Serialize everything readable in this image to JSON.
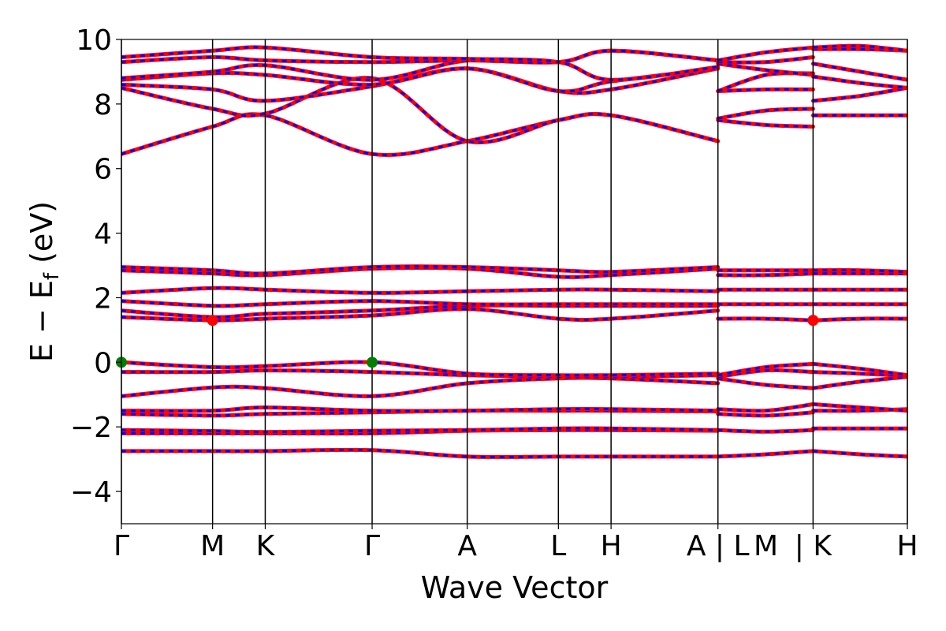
{
  "chart_data": {
    "type": "line",
    "title": "",
    "xlabel": "Wave Vector",
    "ylabel": "E − E",
    "ylabel_sub": "f",
    "ylabel_unit": " (eV)",
    "ylim": [
      -5,
      10
    ],
    "yticks": [
      -4,
      -2,
      0,
      2,
      4,
      6,
      8,
      10
    ],
    "ytick_labels": [
      "−4",
      "−2",
      "0",
      "2",
      "4",
      "6",
      "8",
      "10"
    ],
    "xlim": [
      0,
      1
    ],
    "kpoint_positions": [
      0,
      0.116,
      0.183,
      0.319,
      0.44,
      0.556,
      0.623,
      0.759,
      0.88,
      1.0
    ],
    "kpoint_labels": [
      {
        "x": 0,
        "label": "Γ"
      },
      {
        "x": 0.116,
        "label": "M"
      },
      {
        "x": 0.183,
        "label": "K"
      },
      {
        "x": 0.319,
        "label": "Γ"
      },
      {
        "x": 0.44,
        "label": "A"
      },
      {
        "x": 0.556,
        "label": "L"
      },
      {
        "x": 0.623,
        "label": "H"
      },
      {
        "x": 0.759,
        "label": "A | L"
      },
      {
        "x": 0.82,
        "label": "M"
      },
      {
        "x": 0.88,
        "label": "| K"
      },
      {
        "x": 1.0,
        "label": "H"
      }
    ],
    "grid": false,
    "legend": "none",
    "colors": {
      "solid": "#ff0000",
      "dashed": "#0000ff",
      "vbm": "#008000",
      "cbm": "#ff0000"
    },
    "segments": [
      [
        0,
        0.759
      ],
      [
        0.759,
        0.88
      ],
      [
        0.88,
        1.0
      ]
    ],
    "series": [
      {
        "segment": 0,
        "x": [
          0,
          0.116,
          0.183,
          0.319,
          0.44,
          0.556,
          0.623,
          0.759
        ],
        "y": [
          -2.75,
          -2.75,
          -2.75,
          -2.72,
          -2.92,
          -2.92,
          -2.92,
          -2.92
        ]
      },
      {
        "segment": 0,
        "x": [
          0,
          0.116,
          0.183,
          0.319,
          0.44,
          0.556,
          0.623,
          0.759
        ],
        "y": [
          -2.2,
          -2.2,
          -2.2,
          -2.2,
          -2.12,
          -2.1,
          -2.1,
          -2.12
        ]
      },
      {
        "segment": 0,
        "x": [
          0,
          0.116,
          0.183,
          0.319,
          0.44,
          0.556,
          0.623,
          0.759
        ],
        "y": [
          -2.1,
          -2.13,
          -2.16,
          -2.12,
          -2.1,
          -2.05,
          -2.05,
          -2.1
        ]
      },
      {
        "segment": 0,
        "x": [
          0,
          0.116,
          0.183,
          0.319,
          0.44,
          0.556,
          0.623,
          0.759
        ],
        "y": [
          -1.6,
          -1.65,
          -1.6,
          -1.55,
          -1.5,
          -1.5,
          -1.5,
          -1.52
        ]
      },
      {
        "segment": 0,
        "x": [
          0,
          0.116,
          0.183,
          0.319,
          0.44,
          0.556,
          0.623,
          0.759
        ],
        "y": [
          -1.5,
          -1.5,
          -1.4,
          -1.5,
          -1.5,
          -1.45,
          -1.45,
          -1.5
        ]
      },
      {
        "segment": 0,
        "x": [
          0,
          0.116,
          0.183,
          0.319,
          0.44,
          0.556,
          0.623,
          0.759
        ],
        "y": [
          -1.05,
          -0.78,
          -0.8,
          -1.05,
          -0.65,
          -0.5,
          -0.5,
          -0.65
        ]
      },
      {
        "segment": 0,
        "x": [
          0,
          0.116,
          0.183,
          0.319,
          0.44,
          0.556,
          0.623,
          0.759
        ],
        "y": [
          -0.3,
          -0.3,
          -0.25,
          -0.3,
          -0.4,
          -0.45,
          -0.45,
          -0.4
        ]
      },
      {
        "segment": 0,
        "x": [
          0,
          0.116,
          0.183,
          0.319,
          0.44,
          0.556,
          0.623,
          0.759
        ],
        "y": [
          0.0,
          -0.15,
          -0.12,
          0.0,
          -0.35,
          -0.4,
          -0.4,
          -0.35
        ]
      },
      {
        "segment": 0,
        "x": [
          0,
          0.116,
          0.183,
          0.319,
          0.44,
          0.556,
          0.623,
          0.759
        ],
        "y": [
          1.4,
          1.3,
          1.35,
          1.45,
          1.65,
          1.35,
          1.35,
          1.6
        ]
      },
      {
        "segment": 0,
        "x": [
          0,
          0.116,
          0.183,
          0.319,
          0.44,
          0.556,
          0.623,
          0.759
        ],
        "y": [
          1.6,
          1.4,
          1.5,
          1.6,
          1.75,
          1.75,
          1.75,
          1.75
        ]
      },
      {
        "segment": 0,
        "x": [
          0,
          0.116,
          0.183,
          0.319,
          0.44,
          0.556,
          0.623,
          0.759
        ],
        "y": [
          1.9,
          1.75,
          1.8,
          1.9,
          1.8,
          1.8,
          1.8,
          1.8
        ]
      },
      {
        "segment": 0,
        "x": [
          0,
          0.116,
          0.183,
          0.319,
          0.44,
          0.556,
          0.623,
          0.759
        ],
        "y": [
          2.15,
          2.3,
          2.25,
          2.15,
          2.2,
          2.25,
          2.25,
          2.2
        ]
      },
      {
        "segment": 0,
        "x": [
          0,
          0.116,
          0.183,
          0.319,
          0.44,
          0.556,
          0.623,
          0.759
        ],
        "y": [
          2.85,
          2.75,
          2.7,
          2.9,
          2.9,
          2.65,
          2.7,
          2.9
        ]
      },
      {
        "segment": 0,
        "x": [
          0,
          0.116,
          0.183,
          0.319,
          0.44,
          0.556,
          0.623,
          0.759
        ],
        "y": [
          2.95,
          2.85,
          2.75,
          2.95,
          2.95,
          2.85,
          2.8,
          2.95
        ]
      },
      {
        "segment": 0,
        "x": [
          0,
          0.116,
          0.183,
          0.319,
          0.44,
          0.556,
          0.623,
          0.759
        ],
        "y": [
          6.45,
          7.3,
          7.65,
          6.45,
          6.85,
          7.5,
          7.65,
          6.85
        ]
      },
      {
        "segment": 0,
        "x": [
          0,
          0.116,
          0.183,
          0.319,
          0.44,
          0.556,
          0.623,
          0.759
        ],
        "y": [
          8.5,
          7.85,
          7.7,
          8.8,
          6.85,
          7.5,
          7.65,
          6.85
        ]
      },
      {
        "segment": 0,
        "x": [
          0,
          0.116,
          0.183,
          0.319,
          0.44,
          0.556,
          0.623,
          0.759
        ],
        "y": [
          8.6,
          8.45,
          8.1,
          8.55,
          9.1,
          8.4,
          8.45,
          9.1
        ]
      },
      {
        "segment": 0,
        "x": [
          0,
          0.116,
          0.183,
          0.319,
          0.44,
          0.556,
          0.623,
          0.759
        ],
        "y": [
          8.75,
          8.95,
          8.9,
          8.6,
          9.1,
          8.4,
          8.7,
          9.1
        ]
      },
      {
        "segment": 0,
        "x": [
          0,
          0.116,
          0.183,
          0.319,
          0.44,
          0.556,
          0.623,
          0.759
        ],
        "y": [
          8.8,
          9.0,
          9.2,
          8.75,
          9.35,
          9.3,
          9.65,
          9.35
        ]
      },
      {
        "segment": 0,
        "x": [
          0,
          0.116,
          0.183,
          0.319,
          0.44,
          0.556,
          0.623,
          0.759
        ],
        "y": [
          9.3,
          9.45,
          9.35,
          9.3,
          9.35,
          9.3,
          9.65,
          9.35
        ]
      },
      {
        "segment": 0,
        "x": [
          0,
          0.116,
          0.183,
          0.319,
          0.44,
          0.556,
          0.623,
          0.759
        ],
        "y": [
          9.45,
          9.65,
          9.75,
          9.45,
          9.4,
          9.3,
          8.75,
          9.15
        ]
      },
      {
        "segment": 1,
        "x": [
          0.759,
          0.82,
          0.88
        ],
        "y": [
          -2.92,
          -2.85,
          -2.75
        ]
      },
      {
        "segment": 1,
        "x": [
          0.759,
          0.82,
          0.88
        ],
        "y": [
          -2.1,
          -2.15,
          -2.1
        ]
      },
      {
        "segment": 1,
        "x": [
          0.759,
          0.82,
          0.88
        ],
        "y": [
          -1.6,
          -1.65,
          -1.55
        ]
      },
      {
        "segment": 1,
        "x": [
          0.759,
          0.82,
          0.88
        ],
        "y": [
          -1.45,
          -1.5,
          -1.3
        ]
      },
      {
        "segment": 1,
        "x": [
          0.759,
          0.82,
          0.88
        ],
        "y": [
          -0.5,
          -0.7,
          -0.8
        ]
      },
      {
        "segment": 1,
        "x": [
          0.759,
          0.82,
          0.88
        ],
        "y": [
          -0.45,
          -0.25,
          -0.3
        ]
      },
      {
        "segment": 1,
        "x": [
          0.759,
          0.82,
          0.88
        ],
        "y": [
          -0.4,
          -0.15,
          -0.05
        ]
      },
      {
        "segment": 1,
        "x": [
          0.759,
          0.82,
          0.88
        ],
        "y": [
          1.35,
          1.35,
          1.3
        ]
      },
      {
        "segment": 1,
        "x": [
          0.759,
          0.82,
          0.88
        ],
        "y": [
          1.8,
          1.8,
          1.8
        ]
      },
      {
        "segment": 1,
        "x": [
          0.759,
          0.82,
          0.88
        ],
        "y": [
          2.25,
          2.25,
          2.25
        ]
      },
      {
        "segment": 1,
        "x": [
          0.759,
          0.82,
          0.88
        ],
        "y": [
          2.7,
          2.7,
          2.75
        ]
      },
      {
        "segment": 1,
        "x": [
          0.759,
          0.82,
          0.88
        ],
        "y": [
          2.85,
          2.85,
          2.85
        ]
      },
      {
        "segment": 1,
        "x": [
          0.759,
          0.82,
          0.88
        ],
        "y": [
          7.5,
          7.35,
          7.3
        ]
      },
      {
        "segment": 1,
        "x": [
          0.759,
          0.82,
          0.88
        ],
        "y": [
          7.55,
          7.8,
          7.85
        ]
      },
      {
        "segment": 1,
        "x": [
          0.759,
          0.82,
          0.88
        ],
        "y": [
          8.4,
          8.45,
          8.45
        ]
      },
      {
        "segment": 1,
        "x": [
          0.759,
          0.82,
          0.88
        ],
        "y": [
          8.4,
          8.9,
          8.95
        ]
      },
      {
        "segment": 1,
        "x": [
          0.759,
          0.82,
          0.88
        ],
        "y": [
          9.25,
          9.05,
          8.9
        ]
      },
      {
        "segment": 1,
        "x": [
          0.759,
          0.82,
          0.88
        ],
        "y": [
          9.3,
          9.3,
          9.45
        ]
      },
      {
        "segment": 1,
        "x": [
          0.759,
          0.82,
          0.88
        ],
        "y": [
          9.35,
          9.6,
          9.75
        ]
      },
      {
        "segment": 2,
        "x": [
          0.88,
          0.94,
          1.0
        ],
        "y": [
          -2.75,
          -2.85,
          -2.92
        ]
      },
      {
        "segment": 2,
        "x": [
          0.88,
          0.94,
          1.0
        ],
        "y": [
          -2.05,
          -2.05,
          -2.05
        ]
      },
      {
        "segment": 2,
        "x": [
          0.88,
          0.94,
          1.0
        ],
        "y": [
          -1.5,
          -1.5,
          -1.45
        ]
      },
      {
        "segment": 2,
        "x": [
          0.88,
          0.94,
          1.0
        ],
        "y": [
          -1.3,
          -1.4,
          -1.5
        ]
      },
      {
        "segment": 2,
        "x": [
          0.88,
          0.94,
          1.0
        ],
        "y": [
          -0.8,
          -0.6,
          -0.45
        ]
      },
      {
        "segment": 2,
        "x": [
          0.88,
          0.94,
          1.0
        ],
        "y": [
          -0.3,
          -0.35,
          -0.42
        ]
      },
      {
        "segment": 2,
        "x": [
          0.88,
          0.94,
          1.0
        ],
        "y": [
          -0.05,
          -0.2,
          -0.4
        ]
      },
      {
        "segment": 2,
        "x": [
          0.88,
          0.94,
          1.0
        ],
        "y": [
          1.3,
          1.35,
          1.35
        ]
      },
      {
        "segment": 2,
        "x": [
          0.88,
          0.94,
          1.0
        ],
        "y": [
          1.8,
          1.8,
          1.8
        ]
      },
      {
        "segment": 2,
        "x": [
          0.88,
          0.94,
          1.0
        ],
        "y": [
          2.25,
          2.25,
          2.25
        ]
      },
      {
        "segment": 2,
        "x": [
          0.88,
          0.94,
          1.0
        ],
        "y": [
          2.75,
          2.75,
          2.75
        ]
      },
      {
        "segment": 2,
        "x": [
          0.88,
          0.94,
          1.0
        ],
        "y": [
          2.85,
          2.85,
          2.8
        ]
      },
      {
        "segment": 2,
        "x": [
          0.88,
          0.94,
          1.0
        ],
        "y": [
          7.65,
          7.65,
          7.65
        ]
      },
      {
        "segment": 2,
        "x": [
          0.88,
          0.94,
          1.0
        ],
        "y": [
          8.1,
          8.25,
          8.5
        ]
      },
      {
        "segment": 2,
        "x": [
          0.88,
          0.94,
          1.0
        ],
        "y": [
          8.85,
          8.65,
          8.5
        ]
      },
      {
        "segment": 2,
        "x": [
          0.88,
          0.94,
          1.0
        ],
        "y": [
          9.25,
          9.0,
          8.75
        ]
      },
      {
        "segment": 2,
        "x": [
          0.88,
          0.94,
          1.0
        ],
        "y": [
          9.7,
          9.7,
          9.65
        ]
      },
      {
        "segment": 2,
        "x": [
          0.88,
          0.94,
          1.0
        ],
        "y": [
          9.75,
          9.8,
          9.65
        ]
      }
    ],
    "markers": [
      {
        "x": 0,
        "y": 0.0,
        "kind": "vbm"
      },
      {
        "x": 0.319,
        "y": 0.0,
        "kind": "vbm"
      },
      {
        "x": 0.116,
        "y": 1.3,
        "kind": "cbm"
      },
      {
        "x": 0.88,
        "y": 1.3,
        "kind": "cbm"
      }
    ]
  }
}
